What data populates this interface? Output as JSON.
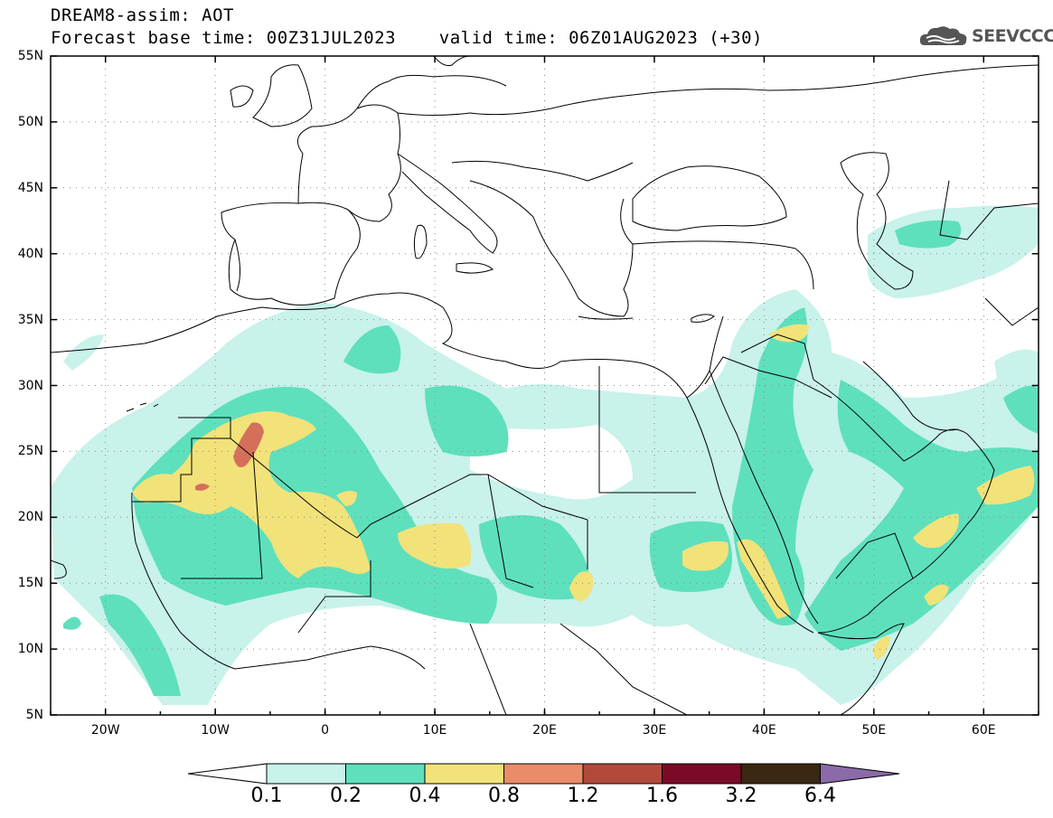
{
  "header": {
    "line1": "DREAM8-assim: AOT",
    "line2": "Forecast base time: 00Z31JUL2023    valid time: 06Z01AUG2023 (+30)"
  },
  "logo": {
    "text": "SEEVCCC",
    "icon": "cloud-icon"
  },
  "map": {
    "lat_range": [
      5,
      55
    ],
    "lon_range": [
      -25,
      65
    ],
    "lat_labels": [
      "55N",
      "50N",
      "45N",
      "40N",
      "35N",
      "30N",
      "25N",
      "20N",
      "15N",
      "10N",
      "5N"
    ],
    "lon_labels": [
      "20W",
      "10W",
      "0",
      "10E",
      "20E",
      "30E",
      "40E",
      "50E",
      "60E"
    ],
    "gridlines": "dotted"
  },
  "legend": {
    "levels": [
      "0.1",
      "0.2",
      "0.4",
      "0.8",
      "1.2",
      "1.6",
      "3.2",
      "6.4"
    ],
    "colors": [
      "#ffffff",
      "#c8f2ea",
      "#5ee0bd",
      "#f2e27a",
      "#ea8c6a",
      "#b24a3c",
      "#7a0a25",
      "#3a2812",
      "#8a6aa8"
    ]
  },
  "colors": {
    "c1": "#c8f2ea",
    "c2": "#5ee0bd",
    "c3": "#f2e27a",
    "c4": "#ea8c6a",
    "c5": "#d4705a"
  }
}
